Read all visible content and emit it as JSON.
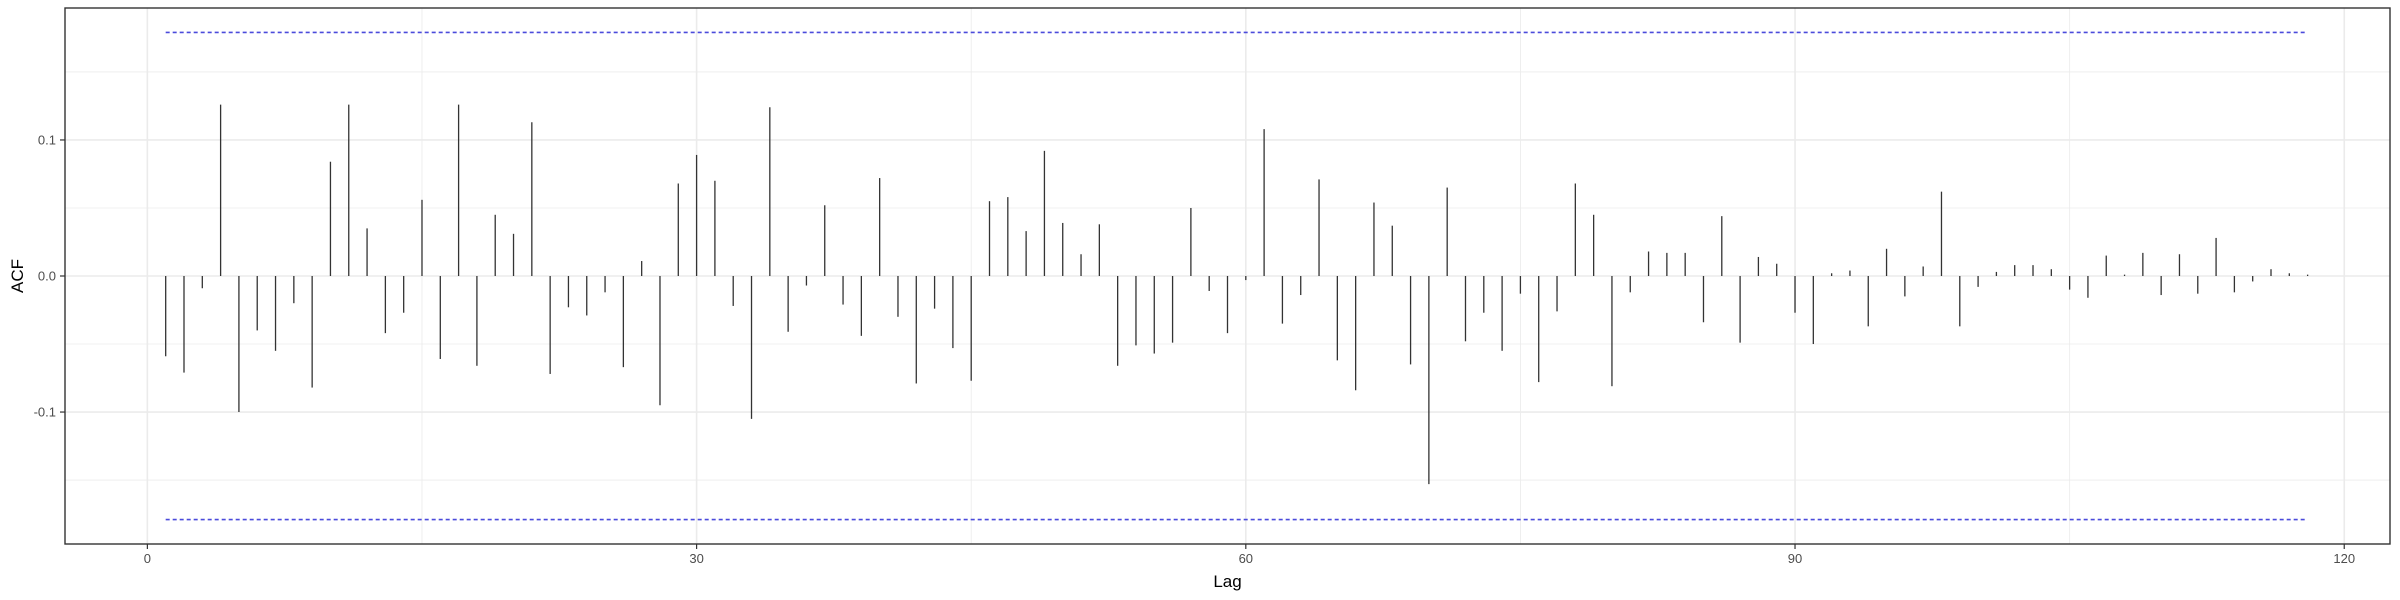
{
  "chart_data": {
    "type": "bar",
    "title": "",
    "xlabel": "Lag",
    "ylabel": "ACF",
    "xlim": [
      -4.5,
      122.5
    ],
    "ylim": [
      -0.197,
      0.197
    ],
    "x_ticks": [
      0,
      30,
      60,
      90,
      120
    ],
    "x_tick_labels": [
      "0",
      "30",
      "60",
      "90",
      "120"
    ],
    "y_ticks": [
      -0.1,
      0.0,
      0.1
    ],
    "y_tick_labels": [
      "-0.1",
      "0.0",
      "0.1"
    ],
    "grid": true,
    "confidence_bounds": [
      0.179,
      -0.179
    ],
    "colors": {
      "stem": "#333333",
      "bound": "#4b4bdb",
      "grid": "#ebebeb",
      "border": "#333333"
    },
    "lags": [
      1,
      2,
      3,
      4,
      5,
      6,
      7,
      8,
      9,
      10,
      11,
      12,
      13,
      14,
      15,
      16,
      17,
      18,
      19,
      20,
      21,
      22,
      23,
      24,
      25,
      26,
      27,
      28,
      29,
      30,
      31,
      32,
      33,
      34,
      35,
      36,
      37,
      38,
      39,
      40,
      41,
      42,
      43,
      44,
      45,
      46,
      47,
      48,
      49,
      50,
      51,
      52,
      53,
      54,
      55,
      56,
      57,
      58,
      59,
      60,
      61,
      62,
      63,
      64,
      65,
      66,
      67,
      68,
      69,
      70,
      71,
      72,
      73,
      74,
      75,
      76,
      77,
      78,
      79,
      80,
      81,
      82,
      83,
      84,
      85,
      86,
      87,
      88,
      89,
      90,
      91,
      92,
      93,
      94,
      95,
      96,
      97,
      98,
      99,
      100,
      101,
      102,
      103,
      104,
      105,
      106,
      107,
      108,
      109,
      110,
      111,
      112,
      113,
      114,
      115,
      116,
      117,
      118
    ],
    "values": [
      -0.059,
      -0.071,
      -0.009,
      0.126,
      -0.1,
      -0.04,
      -0.055,
      -0.02,
      -0.082,
      0.084,
      0.126,
      0.035,
      -0.042,
      -0.027,
      0.056,
      -0.061,
      0.126,
      -0.066,
      0.045,
      0.031,
      0.113,
      -0.072,
      -0.023,
      -0.029,
      -0.012,
      -0.067,
      0.011,
      -0.095,
      0.068,
      0.089,
      0.07,
      -0.022,
      -0.105,
      0.124,
      -0.041,
      -0.007,
      0.052,
      -0.021,
      -0.044,
      0.072,
      -0.03,
      -0.079,
      -0.024,
      -0.053,
      -0.077,
      0.055,
      0.058,
      0.033,
      0.092,
      0.039,
      0.016,
      0.038,
      -0.066,
      -0.051,
      -0.057,
      -0.049,
      0.05,
      -0.011,
      -0.042,
      -0.003,
      0.108,
      -0.035,
      -0.014,
      0.071,
      -0.062,
      -0.084,
      0.054,
      0.037,
      -0.065,
      -0.153,
      0.065,
      -0.048,
      -0.027,
      -0.055,
      -0.013,
      -0.078,
      -0.026,
      0.068,
      0.045,
      -0.081,
      -0.012,
      0.018,
      0.017,
      0.017,
      -0.034,
      0.044,
      -0.049,
      0.014,
      0.009,
      -0.027,
      -0.05,
      0.002,
      0.004,
      -0.037,
      0.02,
      -0.015,
      0.007,
      0.062,
      -0.037,
      -0.008,
      0.003,
      0.008,
      0.008,
      0.005,
      -0.01,
      -0.016,
      0.015,
      0.001,
      0.017,
      -0.014,
      0.016,
      -0.013,
      0.028,
      -0.012,
      -0.004,
      0.005,
      0.002,
      0.001
    ]
  }
}
